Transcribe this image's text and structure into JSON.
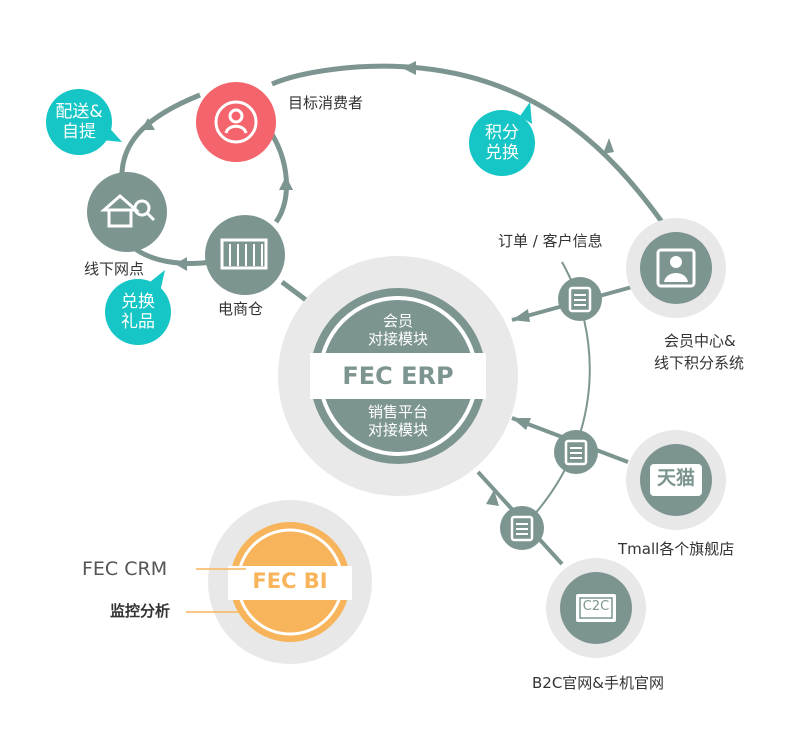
{
  "labels": {
    "target_consumer": "目标消费者",
    "offline_store": "线下网点",
    "ecommerce_warehouse": "电商仓",
    "order_customer_info": "订单 / 客户信息",
    "member_center_line1": "会员中心&",
    "member_center_line2": "线下积分系统",
    "tmall": "Tmall各个旗舰店",
    "b2c": "B2C官网&手机官网",
    "fec_crm": "FEC CRM",
    "monitor_analysis": "监控分析"
  },
  "bubbles": {
    "delivery_line1": "配送&",
    "delivery_line2": "自提",
    "exchange_gift_line1": "兑换",
    "exchange_gift_line2": "礼品",
    "points_line1": "积分",
    "points_line2": "兑换"
  },
  "erp": {
    "title": "FEC ERP",
    "top_line1": "会员",
    "top_line2": "对接模块",
    "bottom_line1": "销售平台",
    "bottom_line2": "对接模块"
  },
  "bi": {
    "title": "FEC BI"
  },
  "icons": {
    "tmall_glyph": "天猫",
    "c2c_glyph": "C2C",
    "person": "person-icon",
    "house": "house-search-icon",
    "warehouse": "warehouse-icon",
    "document": "document-icon",
    "member": "member-icon"
  },
  "colors": {
    "gray": "#7d9590",
    "light_ring": "#e8e8e8",
    "teal": "#16c6c6",
    "red": "#f4646c",
    "orange": "#f7b45a"
  }
}
